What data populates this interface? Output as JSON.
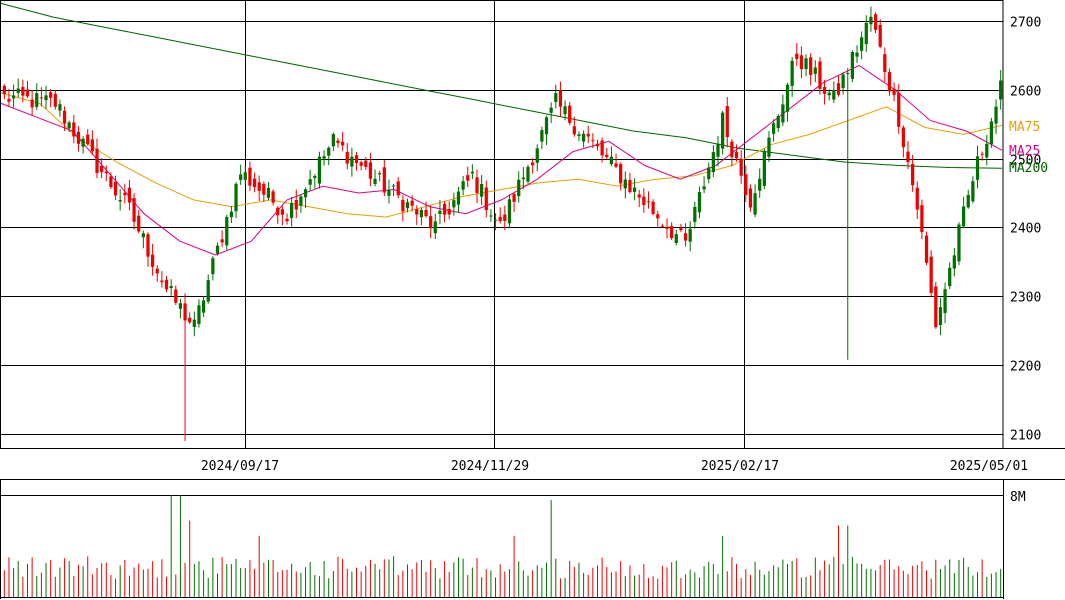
{
  "chart_data": {
    "type": "candlestick",
    "y_ticks": [
      2100,
      2200,
      2300,
      2400,
      2500,
      2600,
      2700
    ],
    "y_tick_labels": [
      "2100",
      "2200",
      "2300",
      "2400",
      "2500",
      "2600",
      "2700"
    ],
    "ylim": [
      2080,
      2730
    ],
    "x_dates": [
      "2024/09/17",
      "2024/11/29",
      "2025/02/17",
      "2025/05/01"
    ],
    "ma_legend": [
      {
        "name": "MA75",
        "color": "#e8a000",
        "value": 2548
      },
      {
        "name": "MA25",
        "color": "#dd0088",
        "value": 2512
      },
      {
        "name": "MA200",
        "color": "#006400",
        "value": 2486
      }
    ],
    "volume_axis_label": "8M",
    "volume_max": 8000000,
    "colors": {
      "up": "#007000",
      "down": "#ee0000",
      "grid": "#000000"
    },
    "num_candles": 200,
    "segments": [
      {
        "n": 12,
        "end": 2580,
        "low": null
      },
      {
        "n": 8,
        "end": 2500
      },
      {
        "n": 8,
        "end": 2425
      },
      {
        "n": 8,
        "end": 2310,
        "low": 2130
      },
      {
        "n": 6,
        "end": 2255
      },
      {
        "n": 10,
        "end": 2480
      },
      {
        "n": 10,
        "end": 2420
      },
      {
        "n": 10,
        "end": 2525
      },
      {
        "n": 10,
        "end": 2465
      },
      {
        "n": 12,
        "end": 2400
      },
      {
        "n": 8,
        "end": 2475
      },
      {
        "n": 6,
        "end": 2400
      },
      {
        "n": 12,
        "end": 2580
      },
      {
        "n": 8,
        "end": 2520
      },
      {
        "n": 10,
        "end": 2445
      },
      {
        "n": 10,
        "end": 2375
      },
      {
        "n": 8,
        "end": 2555
      },
      {
        "n": 6,
        "end": 2440
      },
      {
        "n": 10,
        "end": 2650
      },
      {
        "n": 8,
        "end": 2585
      },
      {
        "n": 8,
        "end": 2705
      },
      {
        "n": 6,
        "end": 2560
      },
      {
        "n": 4,
        "end": 2430
      },
      {
        "n": 4,
        "end": 2260
      },
      {
        "n": 8,
        "end": 2470
      },
      {
        "n": 6,
        "end": 2600
      }
    ],
    "ma75_points": [
      2595,
      2580,
      2530,
      2495,
      2465,
      2440,
      2430,
      2440,
      2430,
      2420,
      2415,
      2430,
      2445,
      2455,
      2465,
      2470,
      2460,
      2470,
      2475,
      2490,
      2520,
      2535,
      2555,
      2575,
      2545,
      2535,
      2548
    ],
    "ma25_points": [
      2580,
      2560,
      2540,
      2480,
      2420,
      2380,
      2360,
      2380,
      2440,
      2460,
      2450,
      2455,
      2430,
      2420,
      2440,
      2470,
      2510,
      2525,
      2490,
      2470,
      2490,
      2530,
      2570,
      2610,
      2635,
      2600,
      2555,
      2540,
      2512
    ],
    "ma200_points": [
      2725,
      2705,
      2690,
      2675,
      2660,
      2645,
      2630,
      2615,
      2600,
      2585,
      2570,
      2555,
      2540,
      2530,
      2515,
      2505,
      2495,
      2490,
      2487,
      2486
    ]
  }
}
